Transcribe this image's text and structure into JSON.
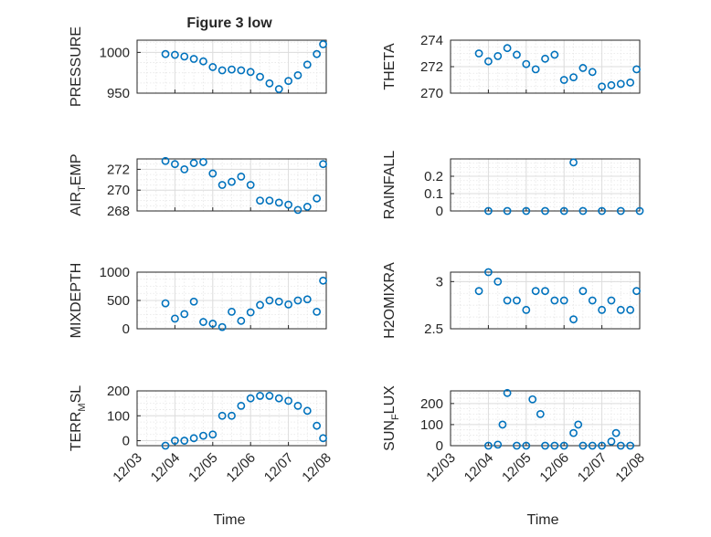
{
  "chart_data": {
    "type": "scatter",
    "title": "Figure 3 low",
    "xlabel": "Time",
    "x_ticks": [
      "12/03",
      "12/04",
      "12/05",
      "12/06",
      "12/07",
      "12/08"
    ],
    "x_range": [
      "12/03",
      "12/08"
    ],
    "grid": true,
    "marker": "circle",
    "series_color": "#0072bd",
    "panels": [
      {
        "ylabel": "PRESSURE",
        "ylim": [
          950,
          1015
        ],
        "yticks": [
          950,
          1000
        ],
        "x": [
          "12/03 18:00",
          "12/04 00:00",
          "12/04 06:00",
          "12/04 12:00",
          "12/04 18:00",
          "12/05 00:00",
          "12/05 06:00",
          "12/05 12:00",
          "12/05 18:00",
          "12/06 00:00",
          "12/06 06:00",
          "12/06 12:00",
          "12/06 18:00",
          "12/07 00:00",
          "12/07 06:00",
          "12/07 12:00",
          "12/07 18:00",
          "12/07 22:00"
        ],
        "y": [
          998,
          997,
          995,
          992,
          989,
          982,
          978,
          979,
          978,
          976,
          970,
          962,
          955,
          965,
          972,
          985,
          998,
          1010
        ]
      },
      {
        "ylabel": "THETA",
        "ylim": [
          270,
          274
        ],
        "yticks": [
          270,
          272,
          274
        ],
        "x": [
          "12/03 18:00",
          "12/04 00:00",
          "12/04 06:00",
          "12/04 12:00",
          "12/04 18:00",
          "12/05 00:00",
          "12/05 06:00",
          "12/05 12:00",
          "12/05 18:00",
          "12/06 00:00",
          "12/06 06:00",
          "12/06 12:00",
          "12/06 18:00",
          "12/07 00:00",
          "12/07 06:00",
          "12/07 12:00",
          "12/07 18:00",
          "12/07 22:00"
        ],
        "y": [
          273.0,
          272.4,
          272.8,
          273.4,
          272.9,
          272.2,
          271.8,
          272.6,
          272.9,
          271.0,
          271.2,
          271.9,
          271.6,
          270.5,
          270.6,
          270.7,
          270.8,
          271.8
        ]
      },
      {
        "ylabel": "AIR_TEMP",
        "ylim": [
          268,
          273
        ],
        "yticks": [
          268,
          270,
          272
        ],
        "x": [
          "12/03 18:00",
          "12/04 00:00",
          "12/04 06:00",
          "12/04 12:00",
          "12/04 18:00",
          "12/05 00:00",
          "12/05 06:00",
          "12/05 12:00",
          "12/05 18:00",
          "12/06 00:00",
          "12/06 06:00",
          "12/06 12:00",
          "12/06 18:00",
          "12/07 00:00",
          "12/07 06:00",
          "12/07 12:00",
          "12/07 18:00",
          "12/07 22:00"
        ],
        "y": [
          272.8,
          272.5,
          272.0,
          272.6,
          272.7,
          271.6,
          270.5,
          270.8,
          271.3,
          270.5,
          269.0,
          269.0,
          268.8,
          268.6,
          268.1,
          268.4,
          269.2,
          272.5
        ]
      },
      {
        "ylabel": "RAINFALL",
        "ylim": [
          0,
          0.3
        ],
        "yticks": [
          0,
          0.1,
          0.2
        ],
        "x": [
          "12/04 00:00",
          "12/04 12:00",
          "12/05 00:00",
          "12/05 12:00",
          "12/06 00:00",
          "12/06 06:00",
          "12/06 12:00",
          "12/07 00:00",
          "12/07 12:00",
          "12/08 00:00"
        ],
        "y": [
          0,
          0,
          0,
          0,
          0,
          0.28,
          0,
          0,
          0,
          0
        ]
      },
      {
        "ylabel": "MIXDEPTH",
        "ylim": [
          0,
          1000
        ],
        "yticks": [
          0,
          500,
          1000
        ],
        "x": [
          "12/03 18:00",
          "12/04 00:00",
          "12/04 06:00",
          "12/04 12:00",
          "12/04 18:00",
          "12/05 00:00",
          "12/05 06:00",
          "12/05 12:00",
          "12/05 18:00",
          "12/06 00:00",
          "12/06 06:00",
          "12/06 12:00",
          "12/06 18:00",
          "12/07 00:00",
          "12/07 06:00",
          "12/07 12:00",
          "12/07 18:00",
          "12/07 22:00"
        ],
        "y": [
          450,
          180,
          260,
          480,
          120,
          90,
          30,
          300,
          140,
          290,
          420,
          500,
          480,
          430,
          500,
          520,
          300,
          850
        ]
      },
      {
        "ylabel": "H2OMIXRA",
        "ylim": [
          2.5,
          3.1
        ],
        "yticks": [
          2.5,
          3
        ],
        "x": [
          "12/03 18:00",
          "12/04 00:00",
          "12/04 06:00",
          "12/04 12:00",
          "12/04 18:00",
          "12/05 00:00",
          "12/05 06:00",
          "12/05 12:00",
          "12/05 18:00",
          "12/06 00:00",
          "12/06 06:00",
          "12/06 12:00",
          "12/06 18:00",
          "12/07 00:00",
          "12/07 06:00",
          "12/07 12:00",
          "12/07 18:00",
          "12/07 22:00"
        ],
        "y": [
          2.9,
          3.1,
          3.0,
          2.8,
          2.8,
          2.7,
          2.9,
          2.9,
          2.8,
          2.8,
          2.6,
          2.9,
          2.8,
          2.7,
          2.8,
          2.7,
          2.7,
          2.9
        ]
      },
      {
        "ylabel": "TERR_MSL",
        "ylim": [
          -20,
          200
        ],
        "yticks": [
          0,
          100,
          200
        ],
        "x": [
          "12/03 18:00",
          "12/04 00:00",
          "12/04 06:00",
          "12/04 12:00",
          "12/04 18:00",
          "12/05 00:00",
          "12/05 06:00",
          "12/05 12:00",
          "12/05 18:00",
          "12/06 00:00",
          "12/06 06:00",
          "12/06 12:00",
          "12/06 18:00",
          "12/07 00:00",
          "12/07 06:00",
          "12/07 12:00",
          "12/07 18:00",
          "12/07 22:00"
        ],
        "y": [
          -20,
          0,
          0,
          10,
          20,
          25,
          100,
          100,
          140,
          170,
          180,
          180,
          170,
          160,
          140,
          120,
          60,
          10
        ]
      },
      {
        "ylabel": "SUN_FLUX",
        "ylim": [
          0,
          260
        ],
        "yticks": [
          0,
          100,
          200
        ],
        "x": [
          "12/04 00:00",
          "12/04 06:00",
          "12/04 09:00",
          "12/04 12:00",
          "12/04 18:00",
          "12/05 00:00",
          "12/05 04:00",
          "12/05 09:00",
          "12/05 12:00",
          "12/05 18:00",
          "12/06 00:00",
          "12/06 06:00",
          "12/06 09:00",
          "12/06 12:00",
          "12/06 18:00",
          "12/07 00:00",
          "12/07 06:00",
          "12/07 09:00",
          "12/07 12:00",
          "12/07 18:00"
        ],
        "y": [
          0,
          5,
          100,
          250,
          0,
          0,
          220,
          150,
          0,
          0,
          0,
          60,
          100,
          0,
          0,
          0,
          20,
          60,
          0,
          0
        ]
      }
    ]
  },
  "labels": {
    "title": "Figure 3 low",
    "panel_ylabels": [
      {
        "main": "PRESSURE",
        "sub": "",
        "rest": ""
      },
      {
        "main": "THETA",
        "sub": "",
        "rest": ""
      },
      {
        "main": "AIR",
        "sub": "T",
        "rest": "EMP"
      },
      {
        "main": "RAINFALL",
        "sub": "",
        "rest": ""
      },
      {
        "main": "MIXDEPTH",
        "sub": "",
        "rest": ""
      },
      {
        "main": "H2OMIXRA",
        "sub": "",
        "rest": ""
      },
      {
        "main": "TERR",
        "sub": "M",
        "rest": "SL"
      },
      {
        "main": "SUN",
        "sub": "F",
        "rest": "LUX"
      }
    ]
  }
}
